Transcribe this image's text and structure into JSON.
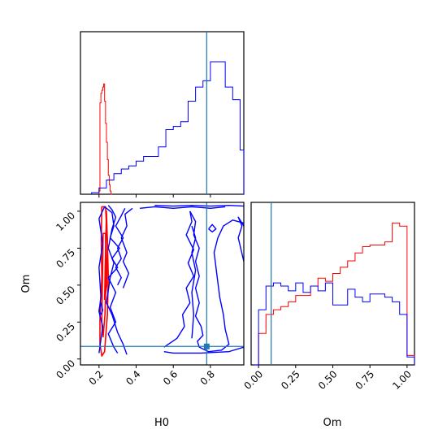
{
  "chart_data": {
    "type": "corner",
    "parameters": [
      "H0",
      "Om"
    ],
    "truth": {
      "H0": 0.78,
      "Om": 0.085
    },
    "colors": {
      "red": "#ff0000",
      "blue": "#0000ff",
      "truth": "#1f77b4"
    },
    "panels": [
      {
        "id": "H0-marginal",
        "type": "histogram",
        "parameter": "H0",
        "xlim": [
          0.1,
          0.98
        ],
        "tick_values": [
          0.2,
          0.4,
          0.6,
          0.8
        ],
        "show_tick_labels": false,
        "series": [
          {
            "color": "red",
            "edges": [
              0.2,
              0.205,
              0.21,
              0.215,
              0.22,
              0.225,
              0.23,
              0.235,
              0.24,
              0.245,
              0.25,
              0.255,
              0.26,
              0.265,
              0.27
            ],
            "counts": [
              0.02,
              0.58,
              0.64,
              0.66,
              0.68,
              0.7,
              0.59,
              0.45,
              0.33,
              0.22,
              0.12,
              0.06,
              0.02,
              0.0
            ]
          },
          {
            "color": "blue",
            "edges": [
              0.16,
              0.2,
              0.24,
              0.28,
              0.32,
              0.36,
              0.4,
              0.44,
              0.48,
              0.52,
              0.56,
              0.6,
              0.64,
              0.68,
              0.72,
              0.76,
              0.8,
              0.84,
              0.88,
              0.92,
              0.96,
              0.98
            ],
            "counts": [
              0.01,
              0.04,
              0.09,
              0.13,
              0.16,
              0.18,
              0.21,
              0.24,
              0.24,
              0.3,
              0.41,
              0.43,
              0.46,
              0.59,
              0.68,
              0.72,
              0.84,
              0.84,
              0.68,
              0.6,
              0.28
            ]
          }
        ]
      },
      {
        "id": "H0-Om-joint",
        "type": "contour",
        "xparam": "H0",
        "yparam": "Om",
        "xlim": [
          0.1,
          0.98
        ],
        "ylim": [
          -0.04,
          1.06
        ],
        "x_ticks": [
          "0.2",
          "0.4",
          "0.6",
          "0.8"
        ],
        "y_ticks": [
          "0.00",
          "0.25",
          "0.50",
          "0.75",
          "1.00"
        ],
        "xlabel": "H0",
        "ylabel": "Om",
        "contours": [
          {
            "color": "red",
            "points": [
              [
                0.205,
                0.1
              ],
              [
                0.205,
                0.3
              ],
              [
                0.215,
                0.55
              ],
              [
                0.212,
                0.8
              ],
              [
                0.215,
                1.03
              ],
              [
                0.235,
                1.03
              ],
              [
                0.245,
                0.8
              ],
              [
                0.25,
                0.55
              ],
              [
                0.245,
                0.3
              ],
              [
                0.23,
                0.05
              ],
              [
                0.215,
                0.02
              ],
              [
                0.205,
                0.1
              ]
            ]
          },
          {
            "color": "red",
            "points": [
              [
                0.215,
                0.25
              ],
              [
                0.218,
                0.5
              ],
              [
                0.222,
                0.85
              ],
              [
                0.235,
                0.85
              ],
              [
                0.238,
                0.55
              ],
              [
                0.232,
                0.3
              ],
              [
                0.222,
                0.15
              ],
              [
                0.215,
                0.25
              ]
            ]
          },
          {
            "color": "red",
            "points": [
              [
                0.23,
                0.4
              ],
              [
                0.233,
                0.6
              ],
              [
                0.24,
                1.0
              ],
              [
                0.245,
                0.8
              ],
              [
                0.242,
                0.5
              ],
              [
                0.23,
                0.4
              ]
            ]
          },
          {
            "color": "blue",
            "points": [
              [
                0.2,
                0.04
              ],
              [
                0.22,
                0.22
              ],
              [
                0.2,
                0.32
              ],
              [
                0.21,
                0.42
              ],
              [
                0.2,
                0.62
              ],
              [
                0.22,
                0.78
              ],
              [
                0.2,
                0.95
              ],
              [
                0.23,
                1.03
              ],
              [
                0.27,
                0.99
              ],
              [
                0.28,
                0.9
              ],
              [
                0.26,
                0.82
              ],
              [
                0.31,
                0.75
              ],
              [
                0.27,
                0.68
              ],
              [
                0.3,
                0.62
              ],
              [
                0.25,
                0.55
              ],
              [
                0.29,
                0.45
              ],
              [
                0.26,
                0.35
              ],
              [
                0.29,
                0.25
              ],
              [
                0.25,
                0.17
              ],
              [
                0.28,
                0.08
              ],
              [
                0.3,
                0.04
              ]
            ]
          },
          {
            "color": "blue",
            "points": [
              [
                0.35,
                0.03
              ],
              [
                0.33,
                0.1
              ],
              [
                0.3,
                0.18
              ],
              [
                0.27,
                0.3
              ],
              [
                0.24,
                0.38
              ],
              [
                0.26,
                0.55
              ],
              [
                0.28,
                0.65
              ],
              [
                0.25,
                0.75
              ],
              [
                0.27,
                0.88
              ],
              [
                0.29,
                0.96
              ],
              [
                0.27,
                1.01
              ],
              [
                0.25,
                1.04
              ]
            ]
          },
          {
            "color": "blue",
            "points": [
              [
                0.21,
                0.3
              ],
              [
                0.2,
                0.33
              ],
              [
                0.21,
                0.38
              ],
              [
                0.22,
                0.33
              ],
              [
                0.21,
                0.3
              ]
            ]
          },
          {
            "color": "blue",
            "points": [
              [
                0.3,
                0.5
              ],
              [
                0.32,
                0.55
              ],
              [
                0.29,
                0.62
              ],
              [
                0.32,
                0.68
              ],
              [
                0.3,
                0.75
              ],
              [
                0.33,
                0.82
              ],
              [
                0.29,
                0.9
              ],
              [
                0.32,
                0.97
              ],
              [
                0.34,
                1.02
              ]
            ]
          },
          {
            "color": "blue",
            "points": [
              [
                0.33,
                0.48
              ],
              [
                0.36,
                0.58
              ],
              [
                0.33,
                0.66
              ],
              [
                0.35,
                0.72
              ],
              [
                0.32,
                0.82
              ],
              [
                0.35,
                0.9
              ],
              [
                0.34,
                0.98
              ],
              [
                0.38,
                1.02
              ]
            ]
          },
          {
            "color": "blue",
            "points": [
              [
                0.42,
                1.02
              ],
              [
                0.5,
                1.03
              ],
              [
                0.6,
                1.02
              ],
              [
                0.7,
                1.03
              ],
              [
                0.8,
                1.02
              ],
              [
                0.88,
                1.03
              ]
            ]
          },
          {
            "color": "blue",
            "points": [
              [
                0.5,
                1.04
              ],
              [
                0.6,
                1.035
              ],
              [
                0.7,
                1.04
              ],
              [
                0.8,
                1.035
              ],
              [
                0.9,
                1.04
              ],
              [
                0.98,
                1.035
              ]
            ]
          },
          {
            "color": "blue",
            "points": [
              [
                0.55,
                0.08
              ],
              [
                0.62,
                0.14
              ],
              [
                0.66,
                0.22
              ],
              [
                0.65,
                0.3
              ],
              [
                0.69,
                0.38
              ],
              [
                0.67,
                0.48
              ],
              [
                0.71,
                0.56
              ],
              [
                0.68,
                0.65
              ],
              [
                0.71,
                0.74
              ],
              [
                0.67,
                0.84
              ],
              [
                0.7,
                0.93
              ],
              [
                0.69,
                1.0
              ]
            ]
          },
          {
            "color": "blue",
            "points": [
              [
                0.69,
                1.0
              ],
              [
                0.72,
                0.93
              ],
              [
                0.71,
                0.84
              ],
              [
                0.74,
                0.75
              ],
              [
                0.72,
                0.66
              ],
              [
                0.74,
                0.56
              ],
              [
                0.72,
                0.48
              ],
              [
                0.74,
                0.38
              ],
              [
                0.72,
                0.29
              ],
              [
                0.75,
                0.22
              ],
              [
                0.76,
                0.16
              ],
              [
                0.73,
                0.12
              ],
              [
                0.74,
                0.08
              ],
              [
                0.79,
                0.05
              ],
              [
                0.86,
                0.06
              ],
              [
                0.9,
                0.1
              ],
              [
                0.88,
                0.2
              ],
              [
                0.87,
                0.3
              ],
              [
                0.85,
                0.42
              ],
              [
                0.84,
                0.52
              ],
              [
                0.83,
                0.62
              ],
              [
                0.82,
                0.72
              ],
              [
                0.84,
                0.82
              ],
              [
                0.87,
                0.9
              ],
              [
                0.92,
                0.94
              ],
              [
                0.98,
                0.92
              ]
            ]
          },
          {
            "color": "blue",
            "points": [
              [
                0.7,
                0.14
              ],
              [
                0.71,
                0.3
              ],
              [
                0.7,
                0.45
              ],
              [
                0.72,
                0.6
              ],
              [
                0.7,
                0.72
              ],
              [
                0.72,
                0.82
              ],
              [
                0.7,
                0.9
              ]
            ]
          },
          {
            "color": "blue",
            "points": [
              [
                0.79,
                0.88
              ],
              [
                0.81,
                0.86
              ],
              [
                0.83,
                0.88
              ],
              [
                0.81,
                0.91
              ],
              [
                0.79,
                0.88
              ]
            ]
          },
          {
            "color": "blue",
            "points": [
              [
                0.98,
                0.66
              ],
              [
                0.95,
                0.82
              ],
              [
                0.97,
                0.9
              ],
              [
                0.95,
                0.96
              ],
              [
                0.98,
                0.9
              ]
            ]
          },
          {
            "color": "blue",
            "points": [
              [
                0.55,
                0.05
              ],
              [
                0.6,
                0.04
              ],
              [
                0.75,
                0.04
              ],
              [
                0.9,
                0.05
              ],
              [
                0.98,
                0.08
              ]
            ]
          }
        ]
      },
      {
        "id": "Om-marginal",
        "type": "histogram",
        "parameter": "Om",
        "xlabel": "Om",
        "xlim": [
          -0.05,
          1.05
        ],
        "x_ticks": [
          "0.00",
          "0.25",
          "0.50",
          "0.75",
          "1.00"
        ],
        "series": [
          {
            "color": "red",
            "edges": [
              -0.03,
              0.0,
              0.05,
              0.1,
              0.15,
              0.2,
              0.25,
              0.3,
              0.35,
              0.4,
              0.45,
              0.5,
              0.55,
              0.6,
              0.65,
              0.7,
              0.75,
              0.8,
              0.85,
              0.9,
              0.95,
              1.0,
              1.05
            ],
            "counts": [
              0.0,
              0.2,
              0.32,
              0.35,
              0.37,
              0.4,
              0.44,
              0.44,
              0.5,
              0.55,
              0.53,
              0.58,
              0.62,
              0.66,
              0.71,
              0.75,
              0.76,
              0.76,
              0.78,
              0.9,
              0.88,
              0.06
            ]
          },
          {
            "color": "blue",
            "edges": [
              -0.03,
              0.0,
              0.05,
              0.1,
              0.15,
              0.2,
              0.25,
              0.3,
              0.35,
              0.4,
              0.45,
              0.5,
              0.55,
              0.6,
              0.65,
              0.7,
              0.75,
              0.8,
              0.85,
              0.9,
              0.95,
              1.0,
              1.05
            ],
            "counts": [
              0.0,
              0.35,
              0.5,
              0.52,
              0.5,
              0.47,
              0.52,
              0.46,
              0.5,
              0.47,
              0.52,
              0.38,
              0.38,
              0.48,
              0.43,
              0.4,
              0.45,
              0.45,
              0.43,
              0.4,
              0.32,
              0.05
            ]
          }
        ]
      }
    ]
  }
}
